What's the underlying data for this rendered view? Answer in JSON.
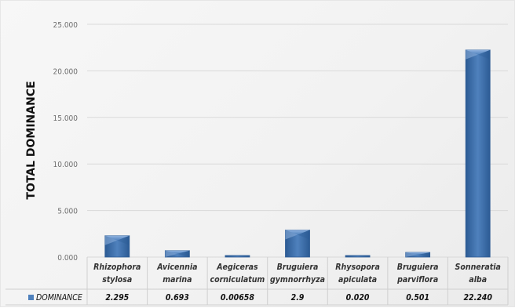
{
  "chart_data": {
    "type": "bar",
    "title": "",
    "ylabel": "TOTAL DOMINANCE",
    "xlabel": "",
    "ylim": [
      0,
      25
    ],
    "yticks": [
      "0.000",
      "5.000",
      "10.000",
      "15.000",
      "20.000",
      "25.000"
    ],
    "grid": true,
    "legend_position": "bottom-left in data table",
    "categories": [
      [
        "Rhizophora",
        "stylosa"
      ],
      [
        "Avicennia",
        "marina"
      ],
      [
        "Aegiceras",
        "corniculatum"
      ],
      [
        "Bruguiera",
        "gymnorrhyza"
      ],
      [
        "Rhysopora",
        "apiculata"
      ],
      [
        "Bruguiera",
        "parviflora"
      ],
      [
        "Sonneratia",
        "alba"
      ]
    ],
    "series": [
      {
        "name": "DOMINANCE",
        "values": [
          2.295,
          0.693,
          0.00658,
          2.9,
          0.02,
          0.501,
          22.24
        ],
        "labels": [
          "2.295",
          "0.693",
          "0.00658",
          "2.9",
          "0.020",
          "0.501",
          "22.240"
        ]
      }
    ],
    "colors": {
      "bar_face": "#4f81bd",
      "bar_light": "#8fb2df",
      "bar_dark": "#2c5b94",
      "grid": "#d9d9d9",
      "legend_key": "#4f81bd"
    }
  }
}
